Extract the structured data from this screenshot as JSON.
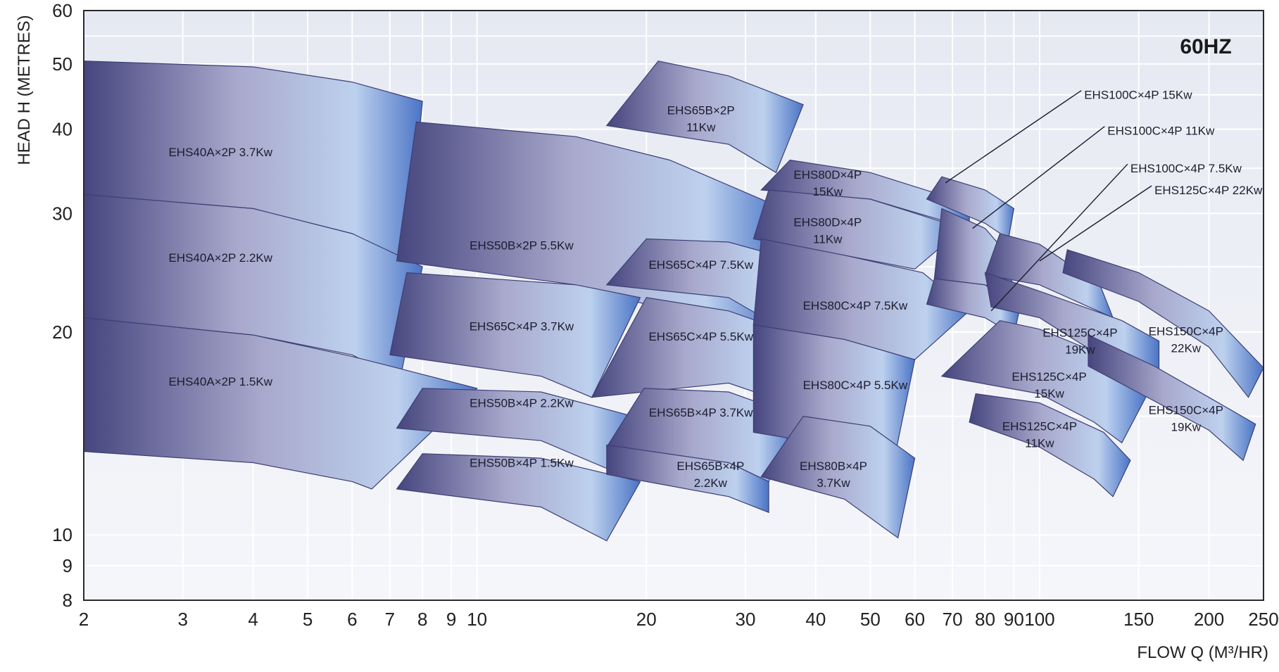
{
  "chart_data": {
    "type": "area",
    "frequency_label": "60HZ",
    "xlabel": "FLOW Q (M³/HR)",
    "ylabel": "HEAD H (METRES)",
    "x_scale": "log",
    "y_scale": "log",
    "xlim": [
      2,
      250
    ],
    "ylim": [
      8,
      60
    ],
    "x_ticks": [
      2,
      3,
      4,
      5,
      6,
      7,
      8,
      9,
      10,
      20,
      30,
      40,
      50,
      60,
      70,
      80,
      90,
      100,
      150,
      200,
      250
    ],
    "y_ticks": [
      8,
      9,
      10,
      20,
      30,
      40,
      50,
      60
    ],
    "grid": true,
    "series": [
      {
        "name": "EHS40A×2P 3.7Kw",
        "label_lines": [
          "EHS40A×2P 3.7Kw"
        ],
        "label_at": [
          3.5,
          37
        ],
        "top": [
          [
            2,
            50.5
          ],
          [
            4,
            49.5
          ],
          [
            6,
            47
          ],
          [
            8,
            44
          ]
        ],
        "bottom": [
          [
            2,
            32
          ],
          [
            4,
            30.5
          ],
          [
            6,
            28
          ],
          [
            7.5,
            25.5
          ]
        ]
      },
      {
        "name": "EHS40A×2P 2.2Kw",
        "label_lines": [
          "EHS40A×2P 2.2Kw"
        ],
        "label_at": [
          3.5,
          25.8
        ],
        "top": [
          [
            2,
            32
          ],
          [
            4,
            30.5
          ],
          [
            6,
            28
          ],
          [
            8,
            25
          ]
        ],
        "bottom": [
          [
            2,
            21
          ],
          [
            4,
            19.8
          ],
          [
            6,
            18.5
          ],
          [
            7.3,
            17
          ]
        ]
      },
      {
        "name": "EHS40A×2P 1.5Kw",
        "label_lines": [
          "EHS40A×2P 1.5Kw"
        ],
        "label_at": [
          3.5,
          16.9
        ],
        "top": [
          [
            2,
            21
          ],
          [
            4,
            19.8
          ],
          [
            6,
            18.4
          ],
          [
            10,
            16.5
          ]
        ],
        "bottom": [
          [
            2,
            13.3
          ],
          [
            4,
            12.8
          ],
          [
            6,
            12
          ],
          [
            6.5,
            11.7
          ]
        ]
      },
      {
        "name": "EHS50B×2P 5.5Kw",
        "label_lines": [
          "EHS50B×2P 5.5Kw"
        ],
        "label_at": [
          12,
          26.9
        ],
        "top": [
          [
            7.8,
            41
          ],
          [
            15,
            39
          ],
          [
            22,
            36
          ],
          [
            35,
            30.5
          ]
        ],
        "bottom": [
          [
            7.2,
            25.5
          ],
          [
            15,
            23.5
          ],
          [
            22,
            21.5
          ],
          [
            32,
            19
          ]
        ]
      },
      {
        "name": "EHS65C×4P 3.7Kw",
        "label_lines": [
          "EHS65C×4P 3.7Kw"
        ],
        "label_at": [
          12,
          20.4
        ],
        "top": [
          [
            7.5,
            24.5
          ],
          [
            15,
            23.5
          ],
          [
            19.5,
            22.5
          ]
        ],
        "bottom": [
          [
            7,
            18.5
          ],
          [
            13,
            17.2
          ],
          [
            16,
            16
          ]
        ]
      },
      {
        "name": "EHS50B×4P 2.2Kw",
        "label_lines": [
          "EHS50B×4P 2.2Kw"
        ],
        "label_at": [
          12,
          15.7
        ],
        "top": [
          [
            8,
            16.5
          ],
          [
            13,
            16.3
          ],
          [
            19.5,
            14.9
          ]
        ],
        "bottom": [
          [
            7.2,
            14.4
          ],
          [
            13,
            13.8
          ],
          [
            18,
            12.3
          ]
        ]
      },
      {
        "name": "EHS50B×4P 1.5Kw",
        "label_lines": [
          "EHS50B×4P 1.5Kw"
        ],
        "label_at": [
          12,
          12.8
        ],
        "top": [
          [
            8,
            13.2
          ],
          [
            13,
            13
          ],
          [
            19.5,
            12
          ]
        ],
        "bottom": [
          [
            7.2,
            11.7
          ],
          [
            13,
            11
          ],
          [
            17,
            9.8
          ]
        ]
      },
      {
        "name": "EHS65B×2P 11Kw",
        "label_lines": [
          "EHS65B×2P",
          "11Kw"
        ],
        "label_at": [
          25,
          41.5
        ],
        "top": [
          [
            21,
            50.5
          ],
          [
            28,
            48
          ],
          [
            38,
            43.5
          ]
        ],
        "bottom": [
          [
            17,
            40.5
          ],
          [
            28,
            38
          ],
          [
            34,
            34.5
          ]
        ]
      },
      {
        "name": "EHS65C×4P 7.5Kw",
        "label_lines": [
          "EHS65C×4P 7.5Kw"
        ],
        "label_at": [
          25,
          25.2
        ],
        "top": [
          [
            20,
            27.5
          ],
          [
            28,
            27.2
          ],
          [
            37,
            25.5
          ]
        ],
        "bottom": [
          [
            17,
            23.5
          ],
          [
            28,
            22.5
          ],
          [
            34,
            20.5
          ]
        ]
      },
      {
        "name": "EHS65C×4P 5.5Kw",
        "label_lines": [
          "EHS65C×4P 5.5Kw"
        ],
        "label_at": [
          25,
          19.7
        ],
        "top": [
          [
            20,
            22.5
          ],
          [
            28,
            21.5
          ],
          [
            37,
            19.8
          ]
        ],
        "bottom": [
          [
            16,
            16
          ],
          [
            28,
            16.8
          ],
          [
            34,
            15.9
          ]
        ]
      },
      {
        "name": "EHS65B×4P 3.7Kw",
        "label_lines": [
          "EHS65B×4P 3.7Kw"
        ],
        "label_at": [
          25,
          15.2
        ],
        "top": [
          [
            19.8,
            16.5
          ],
          [
            28,
            16.3
          ],
          [
            37,
            15
          ]
        ],
        "bottom": [
          [
            17,
            13.5
          ],
          [
            28,
            12.8
          ],
          [
            33,
            12
          ]
        ]
      },
      {
        "name": "EHS65B×4P 2.2Kw",
        "label_lines": [
          "EHS65B×4P",
          "2.2Kw"
        ],
        "label_at": [
          26,
          12.3
        ],
        "top": [
          [
            17,
            13.6
          ],
          [
            28,
            12.8
          ],
          [
            33,
            12
          ]
        ],
        "bottom": [
          [
            17,
            12.3
          ],
          [
            28,
            11.4
          ],
          [
            33,
            10.8
          ]
        ]
      },
      {
        "name": "EHS80D×4P 15Kw",
        "label_lines": [
          "EHS80D×4P",
          "15Kw"
        ],
        "label_at": [
          42,
          33.3
        ],
        "top": [
          [
            36,
            36
          ],
          [
            50,
            34.5
          ],
          [
            75,
            31
          ]
        ],
        "bottom": [
          [
            32,
            32.5
          ],
          [
            50,
            31.5
          ],
          [
            75,
            28.5
          ]
        ]
      },
      {
        "name": "EHS80D×4P 11Kw",
        "label_lines": [
          "EHS80D×4P",
          "11Kw"
        ],
        "label_at": [
          42,
          28.3
        ],
        "top": [
          [
            33,
            32.5
          ],
          [
            50,
            31.5
          ],
          [
            73,
            28.5
          ]
        ],
        "bottom": [
          [
            31,
            27.5
          ],
          [
            45,
            26
          ],
          [
            60,
            24.8
          ]
        ]
      },
      {
        "name": "EHS80C×4P 7.5Kw",
        "label_lines": [
          "EHS80C×4P 7.5Kw"
        ],
        "label_at": [
          47,
          21.9
        ],
        "top": [
          [
            32,
            27.5
          ],
          [
            45,
            26
          ],
          [
            62,
            24.5
          ],
          [
            75,
            21.5
          ]
        ],
        "bottom": [
          [
            31,
            20.5
          ],
          [
            45,
            19.5
          ],
          [
            60,
            18.2
          ]
        ]
      },
      {
        "name": "EHS80C×4P 5.5Kw",
        "label_lines": [
          "EHS80C×4P 5.5Kw"
        ],
        "label_at": [
          47,
          16.7
        ],
        "top": [
          [
            31,
            20.5
          ],
          [
            45,
            19.5
          ],
          [
            60,
            18.2
          ]
        ],
        "bottom": [
          [
            31,
            14.2
          ],
          [
            45,
            13.5
          ],
          [
            55,
            12.8
          ]
        ]
      },
      {
        "name": "EHS80B×4P 3.7Kw",
        "label_lines": [
          "EHS80B×4P",
          "3.7Kw"
        ],
        "label_at": [
          43,
          12.3
        ],
        "top": [
          [
            38,
            15
          ],
          [
            50,
            14.5
          ],
          [
            60,
            13
          ]
        ],
        "bottom": [
          [
            32,
            12.2
          ],
          [
            45,
            11.3
          ],
          [
            56,
            9.9
          ]
        ]
      },
      {
        "name": "EHS100C×4P 15Kw",
        "label_lines": [
          "EHS100C×4P 15Kw"
        ],
        "label_at": [
          120,
          45
        ],
        "callout_from": [
          68,
          33.3
        ],
        "top": [
          [
            67,
            34
          ],
          [
            80,
            32.5
          ],
          [
            90,
            30.5
          ]
        ],
        "bottom": [
          [
            63,
            31.5
          ],
          [
            80,
            29
          ],
          [
            88,
            27.5
          ]
        ]
      },
      {
        "name": "EHS100C×4P 11Kw",
        "label_lines": [
          "EHS100C×4P 11Kw"
        ],
        "label_at": [
          132,
          39.8
        ],
        "callout_from": [
          76,
          28.5
        ],
        "top": [
          [
            67,
            30.5
          ],
          [
            80,
            28.5
          ],
          [
            88,
            26
          ]
        ],
        "bottom": [
          [
            65,
            24
          ],
          [
            80,
            23.5
          ],
          [
            90,
            22.5
          ]
        ]
      },
      {
        "name": "EHS100C×4P 7.5Kw",
        "label_lines": [
          "EHS100C×4P 7.5Kw"
        ],
        "label_at": [
          145,
          35
        ],
        "callout_from": [
          82,
          21.5
        ],
        "top": [
          [
            65,
            24
          ],
          [
            80,
            23.5
          ],
          [
            92,
            21.5
          ]
        ],
        "bottom": [
          [
            63,
            22
          ],
          [
            80,
            21
          ],
          [
            90,
            19.8
          ]
        ]
      },
      {
        "name": "EHS125C×4P 22Kw",
        "label_lines": [
          "EHS125C×4P 22Kw"
        ],
        "label_at": [
          160,
          32.5
        ],
        "callout_from": [
          100,
          25.5
        ],
        "top": [
          [
            85,
            28
          ],
          [
            100,
            27
          ],
          [
            128,
            23.5
          ]
        ],
        "bottom": [
          [
            80,
            24.3
          ],
          [
            100,
            23.5
          ],
          [
            135,
            21
          ]
        ]
      },
      {
        "name": "EHS125C×4P 19Kw",
        "label_lines": [
          "EHS125C×4P",
          "19Kw"
        ],
        "label_at": [
          118,
          19.4
        ],
        "top": [
          [
            80,
            24.5
          ],
          [
            100,
            23
          ],
          [
            140,
            20.8
          ],
          [
            163,
            19.4
          ]
        ],
        "bottom": [
          [
            82,
            21.8
          ],
          [
            100,
            21
          ],
          [
            130,
            18.3
          ],
          [
            163,
            17.4
          ]
        ]
      },
      {
        "name": "EHS125C×4P 15Kw",
        "label_lines": [
          "EHS125C×4P",
          "15Kw"
        ],
        "label_at": [
          104,
          16.7
        ],
        "top": [
          [
            85,
            20.8
          ],
          [
            100,
            20.2
          ],
          [
            140,
            18
          ],
          [
            155,
            16.1
          ]
        ],
        "bottom": [
          [
            67,
            17.2
          ],
          [
            100,
            16.2
          ],
          [
            125,
            14.7
          ],
          [
            140,
            13.7
          ]
        ]
      },
      {
        "name": "EHS125C×4P 11Kw",
        "label_lines": [
          "EHS125C×4P",
          "11Kw"
        ],
        "label_at": [
          100,
          14.1
        ],
        "top": [
          [
            77,
            16.2
          ],
          [
            100,
            15.7
          ],
          [
            130,
            14.2
          ],
          [
            145,
            12.9
          ]
        ],
        "bottom": [
          [
            75,
            14.7
          ],
          [
            100,
            13.5
          ],
          [
            125,
            12.1
          ],
          [
            135,
            11.4
          ]
        ]
      },
      {
        "name": "EHS150C×4P 22Kw",
        "label_lines": [
          "EHS150C×4P",
          "22Kw"
        ],
        "label_at": [
          182,
          19.5
        ],
        "top": [
          [
            112,
            26.5
          ],
          [
            150,
            24.5
          ],
          [
            200,
            21.5
          ],
          [
            250,
            17.7
          ]
        ],
        "bottom": [
          [
            110,
            24.5
          ],
          [
            150,
            22.2
          ],
          [
            200,
            19
          ],
          [
            235,
            16
          ]
        ]
      },
      {
        "name": "EHS150C×4P 19Kw",
        "label_lines": [
          "EHS150C×4P",
          "19Kw"
        ],
        "label_at": [
          182,
          14.9
        ],
        "top": [
          [
            122,
            19.8
          ],
          [
            160,
            17.8
          ],
          [
            200,
            16
          ],
          [
            242,
            14.6
          ]
        ],
        "bottom": [
          [
            122,
            17.8
          ],
          [
            160,
            15.8
          ],
          [
            200,
            14.3
          ],
          [
            230,
            12.9
          ]
        ]
      }
    ]
  }
}
